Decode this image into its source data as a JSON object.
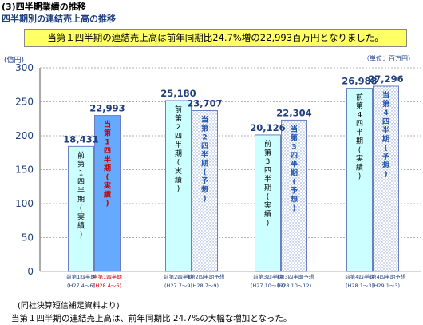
{
  "header": {
    "section_title": "(3)四半期業績の推移",
    "subtitle": "四半期別の連結売上高の推移",
    "banner": "当第１四半期の連結売上高は前年同期比24.7%増の22,993百万円となりました。"
  },
  "footer": {
    "note": "(同社決算短信補足資料より)",
    "summary": "当第１四半期の連結売上高は、前年同期比 24.7%の大幅な増加となった。"
  },
  "chart_data": {
    "type": "bar",
    "y_unit_label": "(億円)",
    "unit_note": "（単位：百万円）",
    "ylim": [
      0,
      300
    ],
    "yticks": [
      0,
      50,
      100,
      150,
      200,
      250,
      300
    ],
    "grid": true,
    "colors": {
      "actual": "#ccffff",
      "forecast": "#ffffff",
      "current": "#66aaff",
      "border": "#6a7fbf"
    },
    "groups": [
      {
        "bars": [
          {
            "value": 184.31,
            "label": "18,431",
            "inner": "前第1四半期(実績)",
            "cat": "前第1四半期",
            "period": "(H27.4〜6)",
            "style": "actual"
          },
          {
            "value": 229.93,
            "label": "22,993",
            "inner": "当第1四半期(実績)",
            "cat": "当第1四半期",
            "period": "(H28.4〜6)",
            "style": "current"
          }
        ]
      },
      {
        "bars": [
          {
            "value": 251.8,
            "label": "25,180",
            "inner": "前第2四半期(実績)",
            "cat": "前第2四半期",
            "period": "(H27.7〜9)",
            "style": "actual"
          },
          {
            "value": 237.07,
            "label": "23,707",
            "inner": "当第2四半期(予想)",
            "cat": "当第2四半期予想",
            "period": "(H28.7〜9)",
            "style": "forecast"
          }
        ]
      },
      {
        "bars": [
          {
            "value": 201.26,
            "label": "20,126",
            "inner": "前第3四半期(実績)",
            "cat": "前第3四半期",
            "period": "(H27.10〜12)",
            "style": "actual"
          },
          {
            "value": 223.04,
            "label": "22,304",
            "inner": "当第3四半期(予想)",
            "cat": "当第3四半期予想",
            "period": "(H28.10〜12)",
            "style": "forecast"
          }
        ]
      },
      {
        "bars": [
          {
            "value": 269.88,
            "label": "26,988",
            "inner": "前第4四半期(実績)",
            "cat": "前第4四半期",
            "period": "(H28.1〜3)",
            "style": "actual"
          },
          {
            "value": 272.96,
            "label": "27,296",
            "inner": "当第4四半期(予想)",
            "cat": "当第4四半期予想",
            "period": "(H29.1〜3)",
            "style": "forecast"
          }
        ]
      }
    ]
  }
}
